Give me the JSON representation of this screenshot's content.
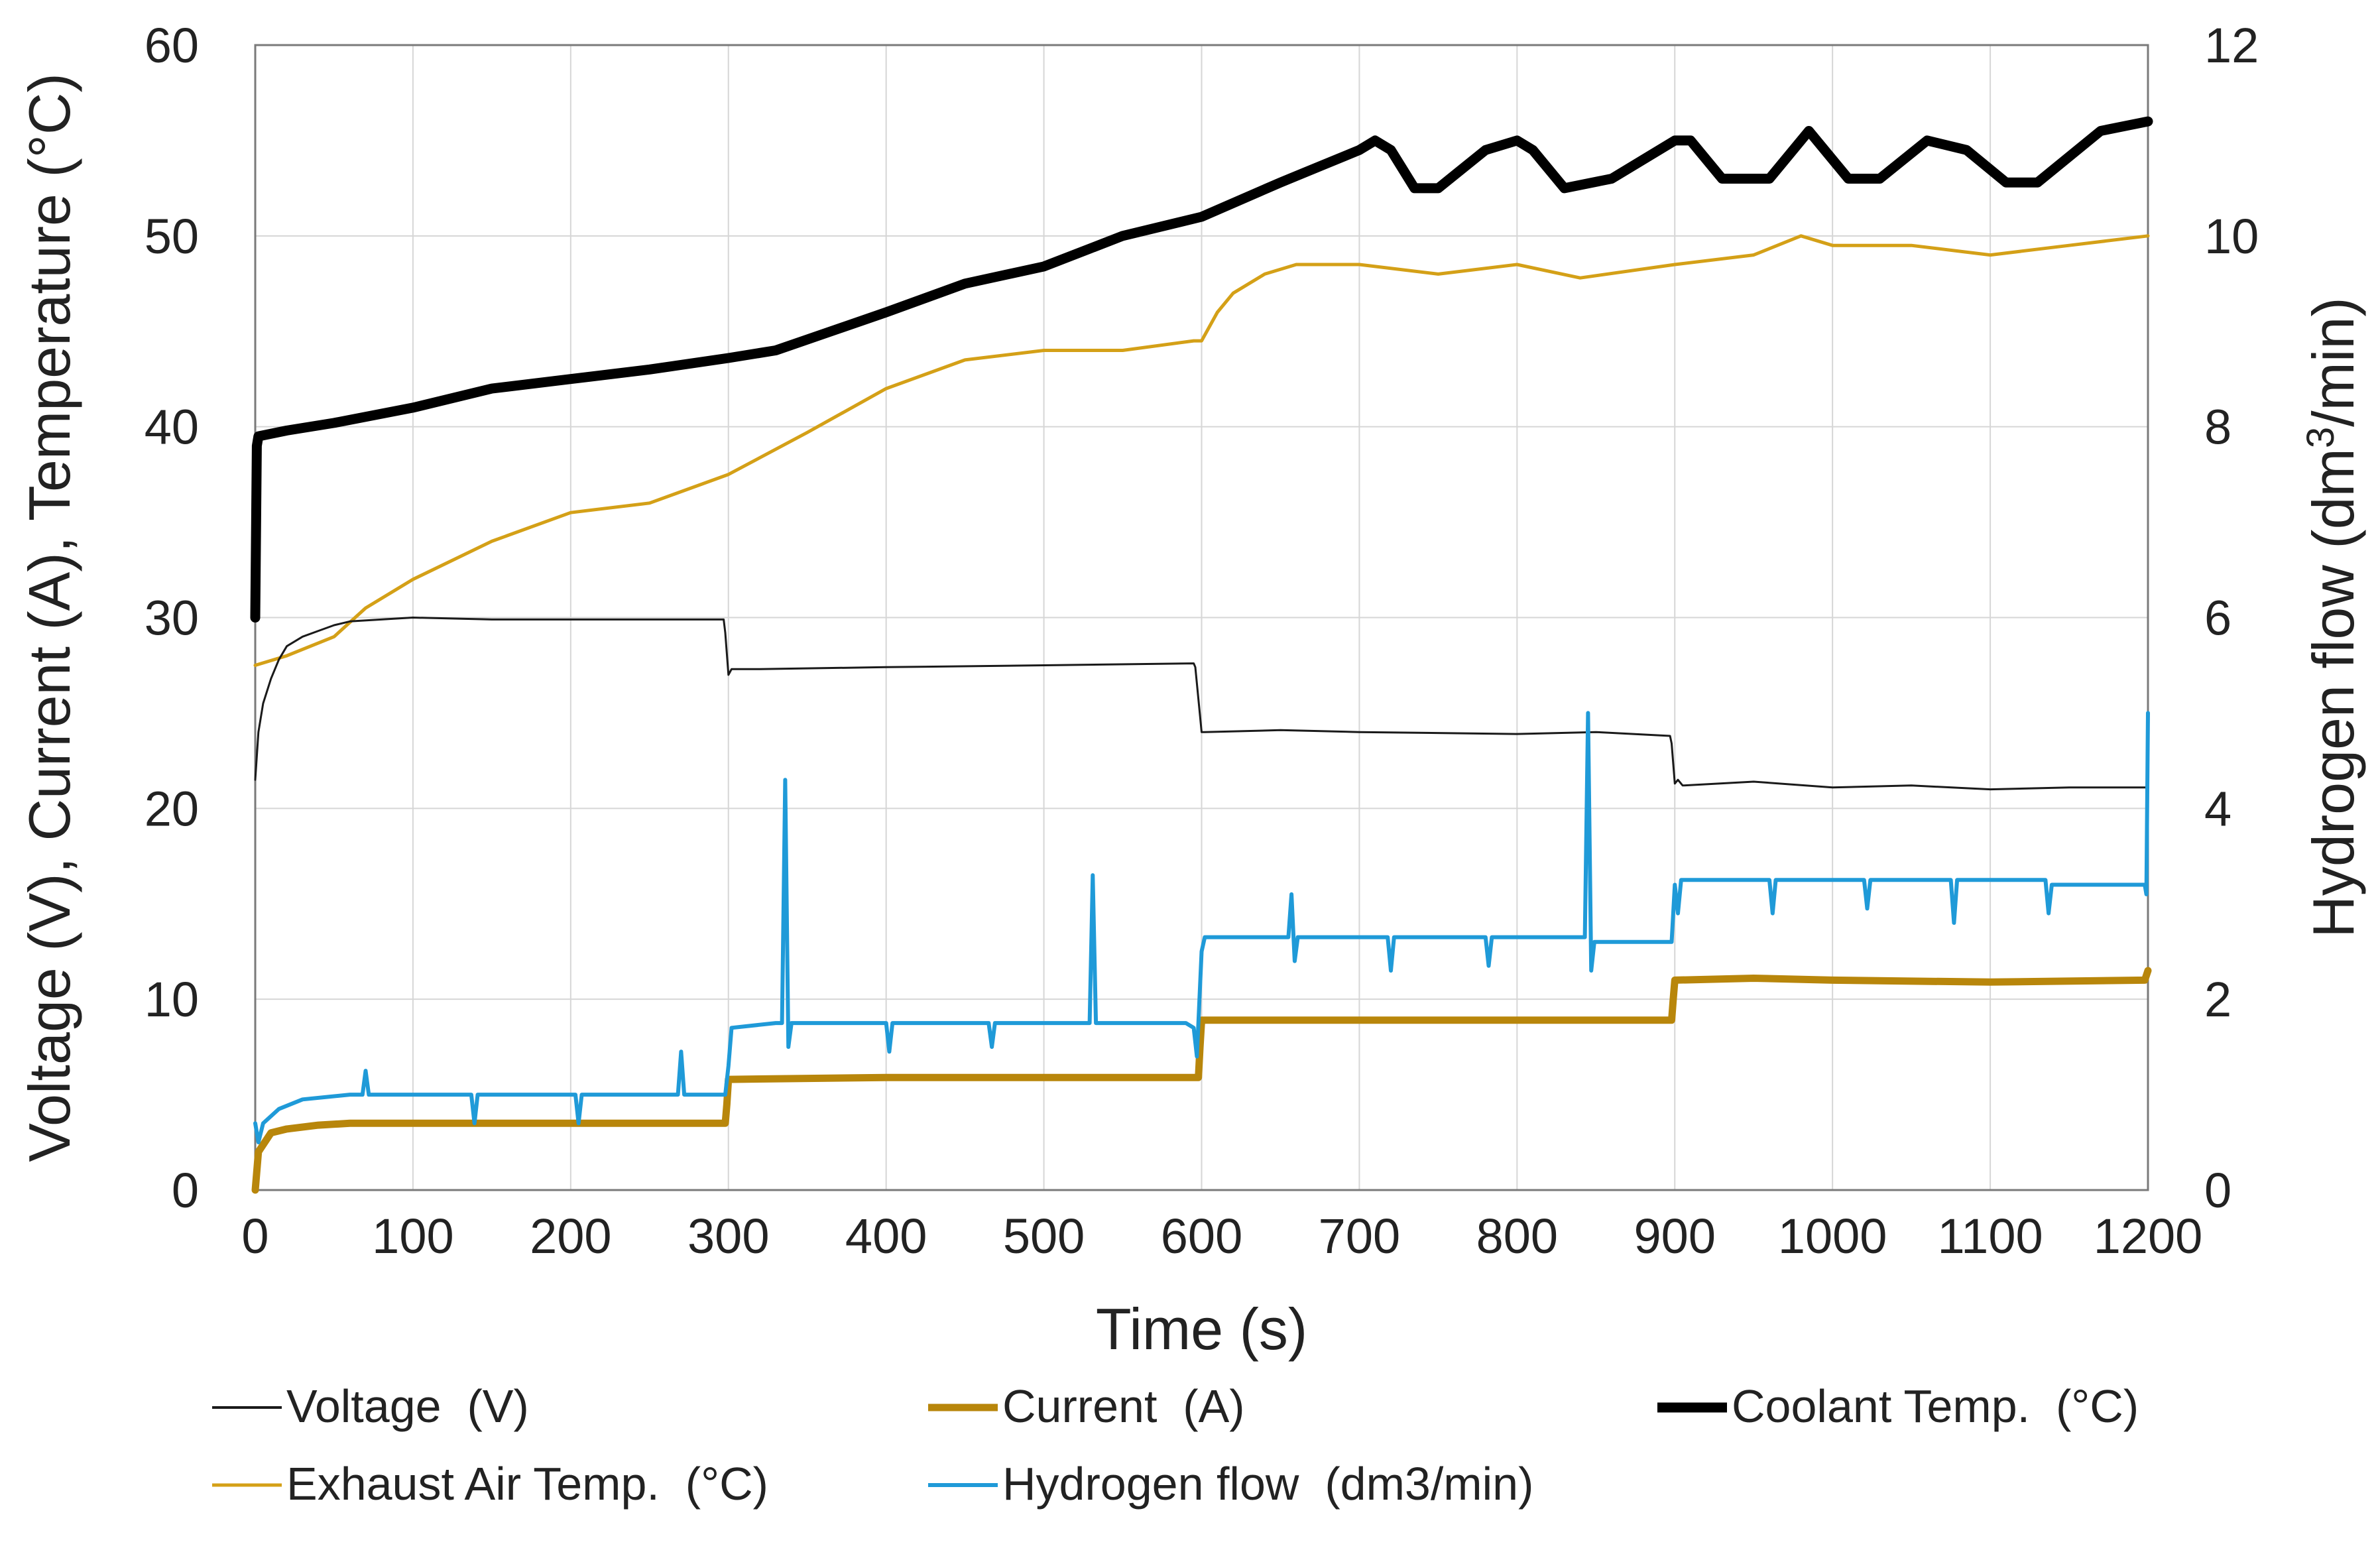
{
  "chart_data": {
    "type": "line",
    "title": "",
    "xlabel": "Time (s)",
    "ylabel": "Voltage (V), Current (A), Temperature (°C)",
    "y2label_prefix": "Hydrogen flow (dm",
    "y2label_sup": "3",
    "y2label_suffix": "/min)",
    "xlim": [
      0,
      1200
    ],
    "ylim": [
      0,
      60
    ],
    "y2lim": [
      0,
      12
    ],
    "grid": true,
    "legend_position": "bottom",
    "x_ticks": [
      "0",
      "100",
      "200",
      "300",
      "400",
      "500",
      "600",
      "700",
      "800",
      "900",
      "1000",
      "1100",
      "1200"
    ],
    "y_ticks": [
      "0",
      "10",
      "20",
      "30",
      "40",
      "50",
      "60"
    ],
    "y2_ticks": [
      "0",
      "2",
      "4",
      "6",
      "8",
      "10",
      "12"
    ],
    "series": [
      {
        "name": "Voltage  (V)",
        "axis": "left",
        "color": "#1a1a1a",
        "x": [
          0,
          2,
          5,
          10,
          15,
          20,
          30,
          40,
          50,
          60,
          80,
          100,
          150,
          200,
          250,
          297,
          298,
          300,
          302,
          320,
          400,
          500,
          595,
          596,
          600,
          602,
          650,
          700,
          800,
          850,
          897,
          898,
          900,
          902,
          905,
          950,
          1000,
          1050,
          1100,
          1150,
          1200
        ],
        "y": [
          21.5,
          24,
          25.5,
          26.8,
          27.8,
          28.5,
          29,
          29.3,
          29.6,
          29.8,
          29.9,
          30,
          29.9,
          29.9,
          29.9,
          29.9,
          29.2,
          27,
          27.3,
          27.3,
          27.4,
          27.5,
          27.6,
          27.4,
          24,
          24,
          24.1,
          24,
          23.9,
          24,
          23.8,
          23.4,
          21.3,
          21.5,
          21.2,
          21.4,
          21.1,
          21.2,
          21,
          21.1,
          21.1
        ]
      },
      {
        "name": "Current  (A)",
        "axis": "left",
        "color": "#b8860b",
        "x": [
          0,
          2,
          10,
          20,
          40,
          60,
          100,
          200,
          298,
          299,
          300,
          400,
          500,
          598,
          599,
          600,
          700,
          800,
          898,
          899,
          900,
          950,
          1000,
          1100,
          1198,
          1200
        ],
        "y": [
          0,
          2,
          3,
          3.2,
          3.4,
          3.5,
          3.5,
          3.5,
          3.5,
          4.5,
          5.8,
          5.9,
          5.9,
          5.9,
          7.5,
          8.9,
          8.9,
          8.9,
          8.9,
          10,
          11,
          11.1,
          11,
          10.9,
          11,
          11.5
        ]
      },
      {
        "name": "Coolant Temp.  (°C)",
        "axis": "left",
        "color": "#000000",
        "x": [
          0,
          1,
          2,
          20,
          50,
          100,
          150,
          200,
          250,
          300,
          330,
          400,
          450,
          500,
          550,
          600,
          650,
          700,
          710,
          720,
          735,
          750,
          780,
          800,
          810,
          830,
          860,
          900,
          910,
          930,
          960,
          985,
          1010,
          1030,
          1060,
          1085,
          1110,
          1130,
          1170,
          1200
        ],
        "y": [
          30,
          39,
          39.5,
          39.8,
          40.2,
          41,
          42,
          42.5,
          43,
          43.6,
          44,
          46,
          47.5,
          48.4,
          50,
          51,
          52.8,
          54.5,
          55,
          54.5,
          52.5,
          52.5,
          54.5,
          55,
          54.5,
          52.5,
          53,
          55,
          55,
          53,
          53,
          55.5,
          53,
          53,
          55,
          54.5,
          52.8,
          52.8,
          55.5,
          56
        ]
      },
      {
        "name": "Exhaust Air Temp.  (°C)",
        "axis": "left",
        "color": "#d4a017",
        "x": [
          0,
          20,
          50,
          70,
          100,
          150,
          200,
          250,
          300,
          350,
          400,
          450,
          500,
          550,
          595,
          600,
          610,
          620,
          640,
          660,
          680,
          700,
          750,
          800,
          840,
          900,
          950,
          980,
          1000,
          1050,
          1100,
          1150,
          1200
        ],
        "y": [
          27.5,
          28,
          29,
          30.5,
          32,
          34,
          35.5,
          36,
          37.5,
          39.7,
          42,
          43.5,
          44,
          44,
          44.5,
          44.5,
          46,
          47,
          48,
          48.5,
          48.5,
          48.5,
          48,
          48.5,
          47.8,
          48.5,
          49,
          50,
          49.5,
          49.5,
          49,
          49.5,
          50
        ]
      },
      {
        "name": "Hydrogen flow  (dm3/min)",
        "axis": "right",
        "color": "#1f9ad8",
        "x": [
          0,
          2,
          5,
          15,
          30,
          60,
          68,
          70,
          72,
          100,
          137,
          139,
          141,
          200,
          203,
          205,
          207,
          260,
          268,
          270,
          272,
          295,
          298,
          300,
          302,
          330,
          334,
          336,
          338,
          340,
          400,
          402,
          404,
          465,
          467,
          469,
          525,
          529,
          531,
          533,
          535,
          590,
          595,
          597,
          600,
          602,
          650,
          655,
          657,
          659,
          661,
          700,
          718,
          720,
          722,
          780,
          782,
          784,
          840,
          843,
          845,
          847,
          849,
          895,
          898,
          900,
          902,
          904,
          950,
          960,
          962,
          964,
          1000,
          1020,
          1022,
          1024,
          1075,
          1077,
          1079,
          1135,
          1137,
          1139,
          1190,
          1196,
          1198,
          1199,
          1200
        ],
        "y": [
          0.7,
          0.5,
          0.7,
          0.85,
          0.95,
          1,
          1,
          1.25,
          1,
          1,
          1,
          0.7,
          1,
          1,
          1,
          0.7,
          1,
          1,
          1,
          1.45,
          1,
          1,
          1,
          1.3,
          1.7,
          1.75,
          1.75,
          4.3,
          1.5,
          1.75,
          1.75,
          1.45,
          1.75,
          1.75,
          1.5,
          1.75,
          1.75,
          1.75,
          3.3,
          1.75,
          1.75,
          1.75,
          1.7,
          1.4,
          2.5,
          2.65,
          2.65,
          2.65,
          3.1,
          2.4,
          2.65,
          2.65,
          2.65,
          2.3,
          2.65,
          2.65,
          2.35,
          2.65,
          2.65,
          2.65,
          5,
          2.3,
          2.6,
          2.6,
          2.6,
          3.2,
          2.9,
          3.25,
          3.25,
          3.25,
          2.9,
          3.25,
          3.25,
          3.25,
          2.95,
          3.25,
          3.25,
          2.8,
          3.25,
          3.25,
          2.9,
          3.2,
          3.2,
          3.2,
          3.2,
          3.1,
          5
        ]
      }
    ]
  }
}
